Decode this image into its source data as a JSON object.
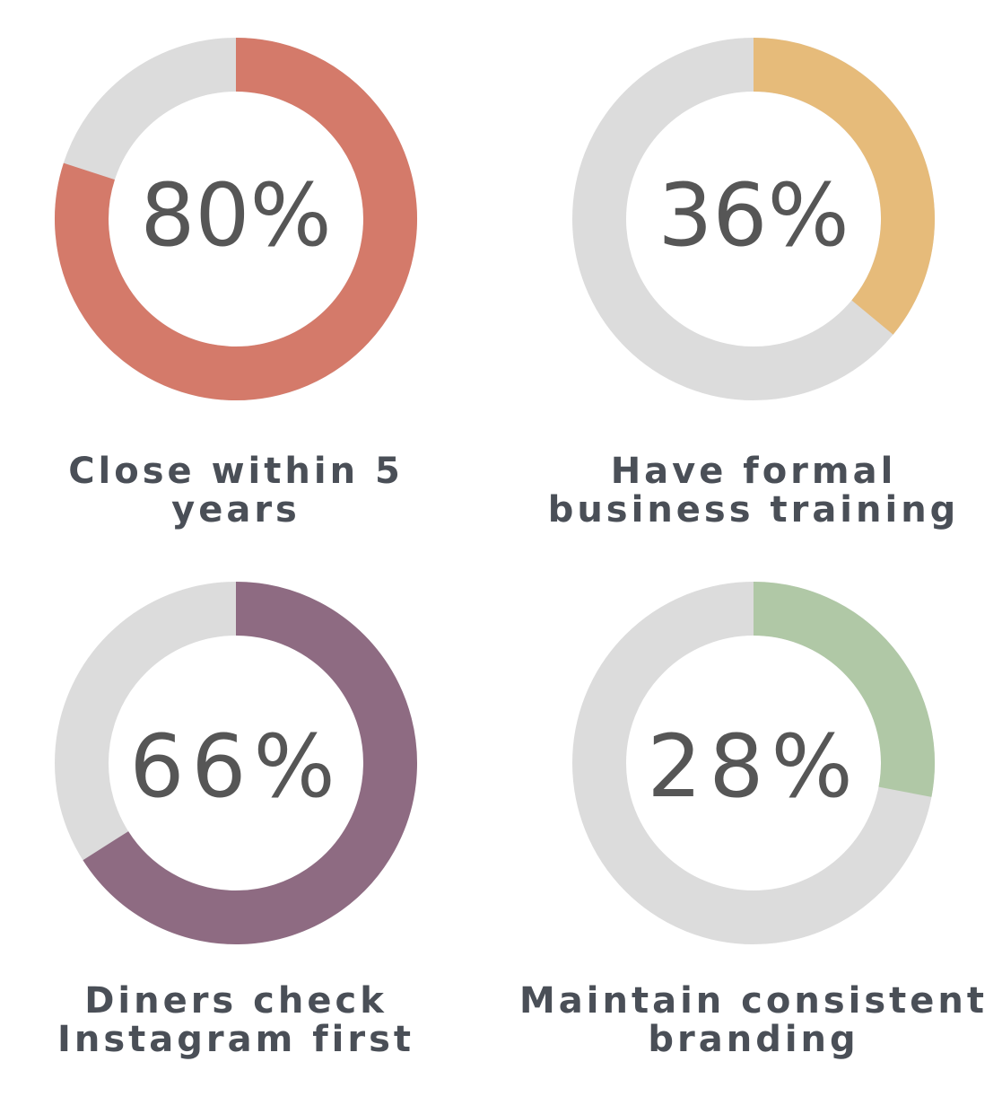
{
  "chart_data": [
    {
      "type": "pie",
      "variant": "donut",
      "value": 80,
      "center_label": "80%",
      "label_lines": [
        "Close within 5",
        "years"
      ],
      "color": "#d47a6a",
      "track_color": "#dcdcdc"
    },
    {
      "type": "pie",
      "variant": "donut",
      "value": 36,
      "center_label": "36%",
      "label_lines": [
        "Have formal",
        "business training"
      ],
      "color": "#e6bb7a",
      "track_color": "#dcdcdc"
    },
    {
      "type": "pie",
      "variant": "donut",
      "value": 66,
      "center_label": "66%",
      "label_lines": [
        "Diners check",
        "Instagram first"
      ],
      "color": "#8e6b82",
      "track_color": "#dcdcdc"
    },
    {
      "type": "pie",
      "variant": "donut",
      "value": 28,
      "center_label": "28%",
      "label_lines": [
        "Maintain consistent",
        "branding"
      ],
      "color": "#b0c8a6",
      "track_color": "#dcdcdc"
    }
  ]
}
